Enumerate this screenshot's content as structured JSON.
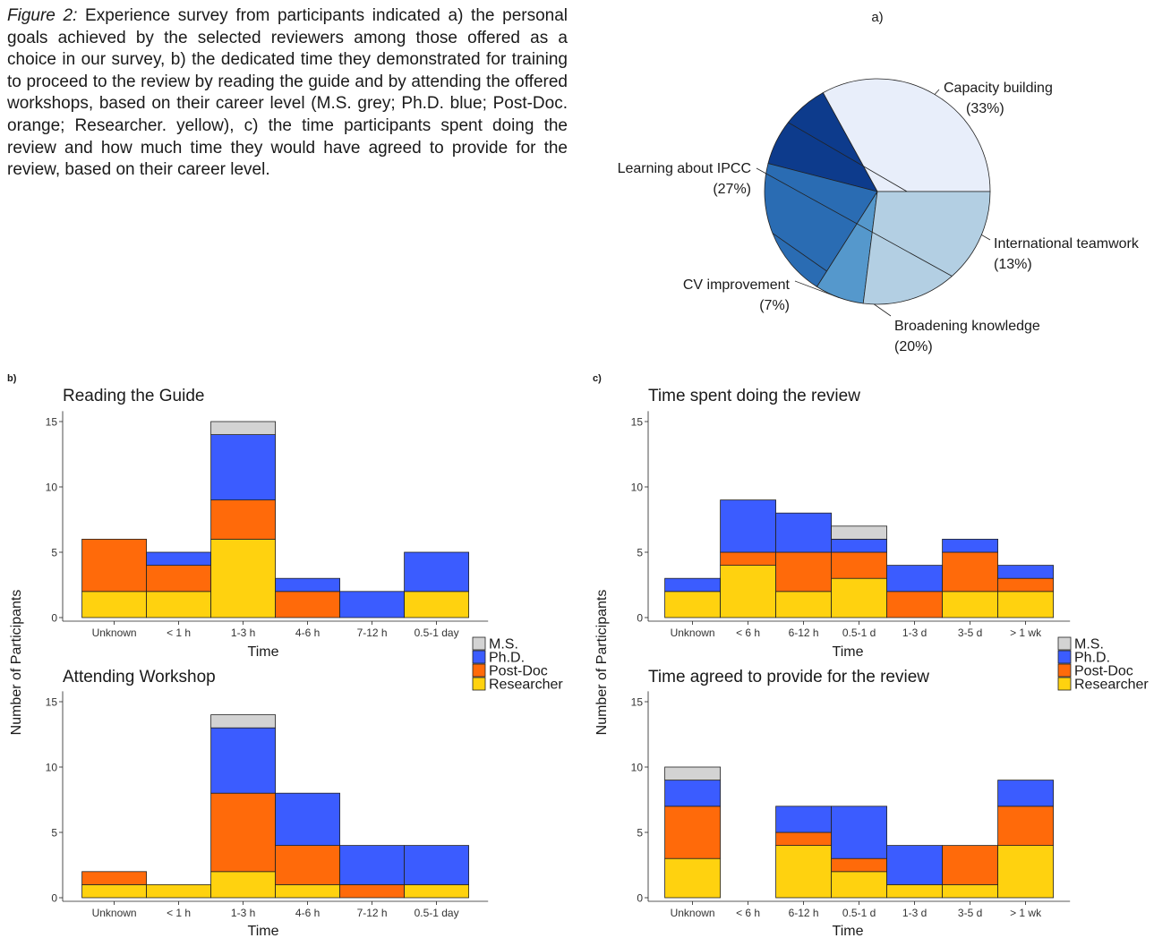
{
  "caption": {
    "lead": "Figure 2:",
    "text": "Experience survey from participants indicated a) the personal goals achieved by the selected reviewers among those offered as a choice in our survey, b) the dedicated time they demonstrated for training to proceed to the review by reading the guide and by attending the offered workshops, based on their career level (M.S. grey; Ph.D. blue; Post-Doc. orange; Researcher. yellow), c) the time participants spent doing the review and how much time they would have agreed to provide for the review, based on their career level."
  },
  "panel_labels": {
    "a": "a)",
    "b": "b)",
    "c": "c)"
  },
  "axis_text": {
    "ylabel": "Number of Participants",
    "xlabel": "Time",
    "yticks": [
      0,
      5,
      10,
      15
    ]
  },
  "legend": {
    "items": [
      {
        "name": "M.S.",
        "color": "#d3d3d3"
      },
      {
        "name": "Ph.D.",
        "color": "#3b5cff"
      },
      {
        "name": "Post-Doc",
        "color": "#ff6a0a"
      },
      {
        "name": "Researcher",
        "color": "#ffd20f"
      }
    ]
  },
  "chart_data": [
    {
      "id": "a",
      "type": "pie",
      "slices": [
        {
          "label": "Capacity building",
          "value": 33,
          "pct": "(33%)",
          "color": "#e8eefa"
        },
        {
          "label": "International teamwork",
          "value": 13,
          "pct": "(13%)",
          "color": "#0d3b8c"
        },
        {
          "label": "Broadening knowledge",
          "value": 20,
          "pct": "(20%)",
          "color": "#2a6cb3"
        },
        {
          "label": "CV improvement",
          "value": 7,
          "pct": "(7%)",
          "color": "#5598cc"
        },
        {
          "label": "Learning about IPCC",
          "value": 27,
          "pct": "(27%)",
          "color": "#b3cfe3"
        }
      ]
    },
    {
      "id": "b1",
      "type": "bar",
      "stacked": true,
      "title": "Reading the Guide",
      "xlabel": "Time",
      "categories": [
        "Unknown",
        "< 1 h",
        "1-3 h",
        "4-6 h",
        "7-12 h",
        "0.5-1 day"
      ],
      "ylim": [
        0,
        15
      ],
      "series": [
        {
          "name": "Researcher",
          "values": [
            2,
            2,
            6,
            0,
            0,
            2
          ]
        },
        {
          "name": "Post-Doc",
          "values": [
            4,
            2,
            3,
            2,
            0,
            0
          ]
        },
        {
          "name": "Ph.D.",
          "values": [
            0,
            1,
            5,
            1,
            2,
            3
          ]
        },
        {
          "name": "M.S.",
          "values": [
            0,
            0,
            1,
            0,
            0,
            0
          ]
        }
      ]
    },
    {
      "id": "b2",
      "type": "bar",
      "stacked": true,
      "title": "Attending Workshop",
      "xlabel": "Time",
      "categories": [
        "Unknown",
        "< 1 h",
        "1-3 h",
        "4-6 h",
        "7-12 h",
        "0.5-1 day"
      ],
      "ylim": [
        0,
        15
      ],
      "series": [
        {
          "name": "Researcher",
          "values": [
            1,
            1,
            2,
            1,
            0,
            1
          ]
        },
        {
          "name": "Post-Doc",
          "values": [
            1,
            0,
            6,
            3,
            1,
            0
          ]
        },
        {
          "name": "Ph.D.",
          "values": [
            0,
            0,
            5,
            4,
            3,
            3
          ]
        },
        {
          "name": "M.S.",
          "values": [
            0,
            0,
            1,
            0,
            0,
            0
          ]
        }
      ]
    },
    {
      "id": "c1",
      "type": "bar",
      "stacked": true,
      "title": "Time spent doing the review",
      "xlabel": "Time",
      "categories": [
        "Unknown",
        "< 6 h",
        "6-12 h",
        "0.5-1 d",
        "1-3 d",
        "3-5 d",
        "> 1 wk"
      ],
      "ylim": [
        0,
        15
      ],
      "series": [
        {
          "name": "Researcher",
          "values": [
            2,
            4,
            2,
            3,
            0,
            2,
            2
          ]
        },
        {
          "name": "Post-Doc",
          "values": [
            0,
            1,
            3,
            2,
            2,
            3,
            1
          ]
        },
        {
          "name": "Ph.D.",
          "values": [
            1,
            4,
            3,
            1,
            2,
            1,
            1
          ]
        },
        {
          "name": "M.S.",
          "values": [
            0,
            0,
            0,
            1,
            0,
            0,
            0
          ]
        }
      ]
    },
    {
      "id": "c2",
      "type": "bar",
      "stacked": true,
      "title": "Time agreed to provide for the review",
      "xlabel": "Time",
      "categories": [
        "Unknown",
        "< 6 h",
        "6-12 h",
        "0.5-1 d",
        "1-3 d",
        "3-5 d",
        "> 1 wk"
      ],
      "ylim": [
        0,
        15
      ],
      "series": [
        {
          "name": "Researcher",
          "values": [
            3,
            0,
            4,
            2,
            1,
            1,
            4
          ]
        },
        {
          "name": "Post-Doc",
          "values": [
            4,
            0,
            1,
            1,
            0,
            3,
            3
          ]
        },
        {
          "name": "Ph.D.",
          "values": [
            2,
            0,
            2,
            4,
            3,
            0,
            2
          ]
        },
        {
          "name": "M.S.",
          "values": [
            1,
            0,
            0,
            0,
            0,
            0,
            0
          ]
        }
      ]
    }
  ]
}
